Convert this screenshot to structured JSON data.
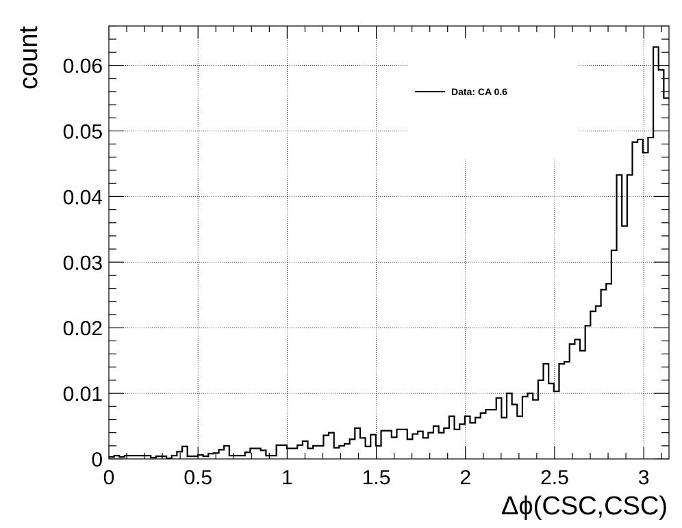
{
  "chart_data": {
    "type": "bar",
    "histogram": true,
    "xlabel": "Δϕ(CSC,CSC)",
    "ylabel": "count",
    "xlim": [
      0,
      3.1416
    ],
    "ylim": [
      0,
      0.066
    ],
    "x_ticks": [
      0,
      0.5,
      1,
      1.5,
      2,
      2.5,
      3
    ],
    "x_tick_labels": [
      "0",
      "0.5",
      "1",
      "1.5",
      "2",
      "2.5",
      "3"
    ],
    "y_ticks": [
      0,
      0.01,
      0.02,
      0.03,
      0.04,
      0.05,
      0.06
    ],
    "y_tick_labels": [
      "0",
      "0.01",
      "0.02",
      "0.03",
      "0.04",
      "0.05",
      "0.06"
    ],
    "grid": true,
    "legend_position": "top-right",
    "series": [
      {
        "name": "Data: CA 0.6",
        "color": "#000000",
        "bin_edges_range": [
          0,
          3.1416
        ],
        "values": [
          0.0003,
          0.0005,
          0.0003,
          0.0005,
          0.0005,
          0.0005,
          0.0005,
          0.0005,
          0.0002,
          0.0004,
          0.0004,
          0.0001,
          0.0005,
          0.0011,
          0.0019,
          0.0004,
          0.0004,
          0.0006,
          0.0004,
          0.0008,
          0.0009,
          0.0014,
          0.002,
          0.0005,
          0.0005,
          0.0005,
          0.001,
          0.0016,
          0.0016,
          0.0013,
          0.0005,
          0.0005,
          0.0021,
          0.0021,
          0.0016,
          0.0016,
          0.0021,
          0.0027,
          0.0016,
          0.002,
          0.002,
          0.0036,
          0.004,
          0.0017,
          0.002,
          0.0023,
          0.003,
          0.0047,
          0.0032,
          0.0019,
          0.0037,
          0.002,
          0.0043,
          0.0043,
          0.0033,
          0.0045,
          0.0045,
          0.003,
          0.0038,
          0.0042,
          0.0032,
          0.004,
          0.005,
          0.004,
          0.0047,
          0.0065,
          0.0045,
          0.0053,
          0.0065,
          0.0055,
          0.0063,
          0.007,
          0.0075,
          0.0075,
          0.0093,
          0.0063,
          0.01,
          0.0083,
          0.0065,
          0.0095,
          0.01,
          0.009,
          0.012,
          0.0145,
          0.0115,
          0.0103,
          0.0145,
          0.0148,
          0.0175,
          0.0182,
          0.0165,
          0.0203,
          0.0225,
          0.0233,
          0.0258,
          0.0267,
          0.0318,
          0.0433,
          0.0355,
          0.0433,
          0.0483,
          0.0487,
          0.0467,
          0.049,
          0.0628,
          0.0593,
          0.055
        ]
      }
    ]
  }
}
